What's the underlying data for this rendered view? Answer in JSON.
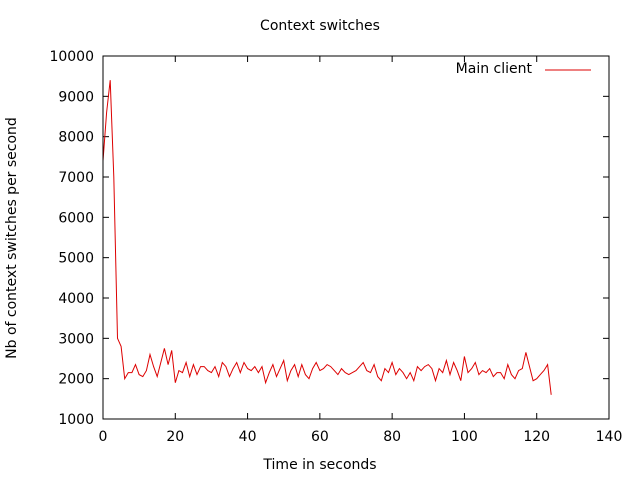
{
  "chart_data": {
    "type": "line",
    "title": "Context switches",
    "xlabel": "Time in seconds",
    "ylabel": "Nb of context switches per second",
    "xlim": [
      0,
      140
    ],
    "ylim": [
      1000,
      10000
    ],
    "xticks": [
      0,
      20,
      40,
      60,
      80,
      100,
      120,
      140
    ],
    "yticks": [
      1000,
      2000,
      3000,
      4000,
      5000,
      6000,
      7000,
      8000,
      9000,
      10000
    ],
    "grid": false,
    "legend_position": "top-right",
    "series": [
      {
        "name": "Main client",
        "color": "#dd0000",
        "x": [
          0,
          1,
          2,
          3,
          4,
          5,
          6,
          7,
          8,
          9,
          10,
          11,
          12,
          13,
          14,
          15,
          16,
          17,
          18,
          19,
          20,
          21,
          22,
          23,
          24,
          25,
          26,
          27,
          28,
          29,
          30,
          31,
          32,
          33,
          34,
          35,
          36,
          37,
          38,
          39,
          40,
          41,
          42,
          43,
          44,
          45,
          46,
          47,
          48,
          49,
          50,
          51,
          52,
          53,
          54,
          55,
          56,
          57,
          58,
          59,
          60,
          61,
          62,
          63,
          64,
          65,
          66,
          67,
          68,
          69,
          70,
          71,
          72,
          73,
          74,
          75,
          76,
          77,
          78,
          79,
          80,
          81,
          82,
          83,
          84,
          85,
          86,
          87,
          88,
          89,
          90,
          91,
          92,
          93,
          94,
          95,
          96,
          97,
          98,
          99,
          100,
          101,
          102,
          103,
          104,
          105,
          106,
          107,
          108,
          109,
          110,
          111,
          112,
          113,
          114,
          115,
          116,
          117,
          118,
          119,
          120,
          121,
          122,
          123,
          124
        ],
        "y": [
          7400,
          8600,
          9400,
          7000,
          3000,
          2800,
          2000,
          2150,
          2150,
          2350,
          2100,
          2050,
          2200,
          2600,
          2300,
          2050,
          2400,
          2750,
          2350,
          2700,
          1900,
          2200,
          2150,
          2400,
          2050,
          2350,
          2100,
          2300,
          2300,
          2200,
          2150,
          2300,
          2050,
          2400,
          2300,
          2050,
          2250,
          2400,
          2150,
          2400,
          2250,
          2200,
          2300,
          2150,
          2300,
          1900,
          2150,
          2350,
          2050,
          2250,
          2450,
          1950,
          2200,
          2350,
          2050,
          2350,
          2100,
          2000,
          2250,
          2400,
          2200,
          2250,
          2350,
          2300,
          2200,
          2100,
          2250,
          2150,
          2100,
          2150,
          2200,
          2300,
          2400,
          2200,
          2150,
          2350,
          2050,
          1950,
          2250,
          2150,
          2400,
          2100,
          2250,
          2150,
          2000,
          2150,
          1950,
          2300,
          2200,
          2300,
          2350,
          2250,
          1950,
          2250,
          2150,
          2450,
          2100,
          2400,
          2200,
          1950,
          2550,
          2150,
          2250,
          2400,
          2100,
          2200,
          2150,
          2250,
          2050,
          2150,
          2150,
          2000,
          2350,
          2100,
          2000,
          2200,
          2250,
          2650,
          2300,
          1950,
          2000,
          2100,
          2200,
          2350,
          1600
        ]
      }
    ]
  }
}
